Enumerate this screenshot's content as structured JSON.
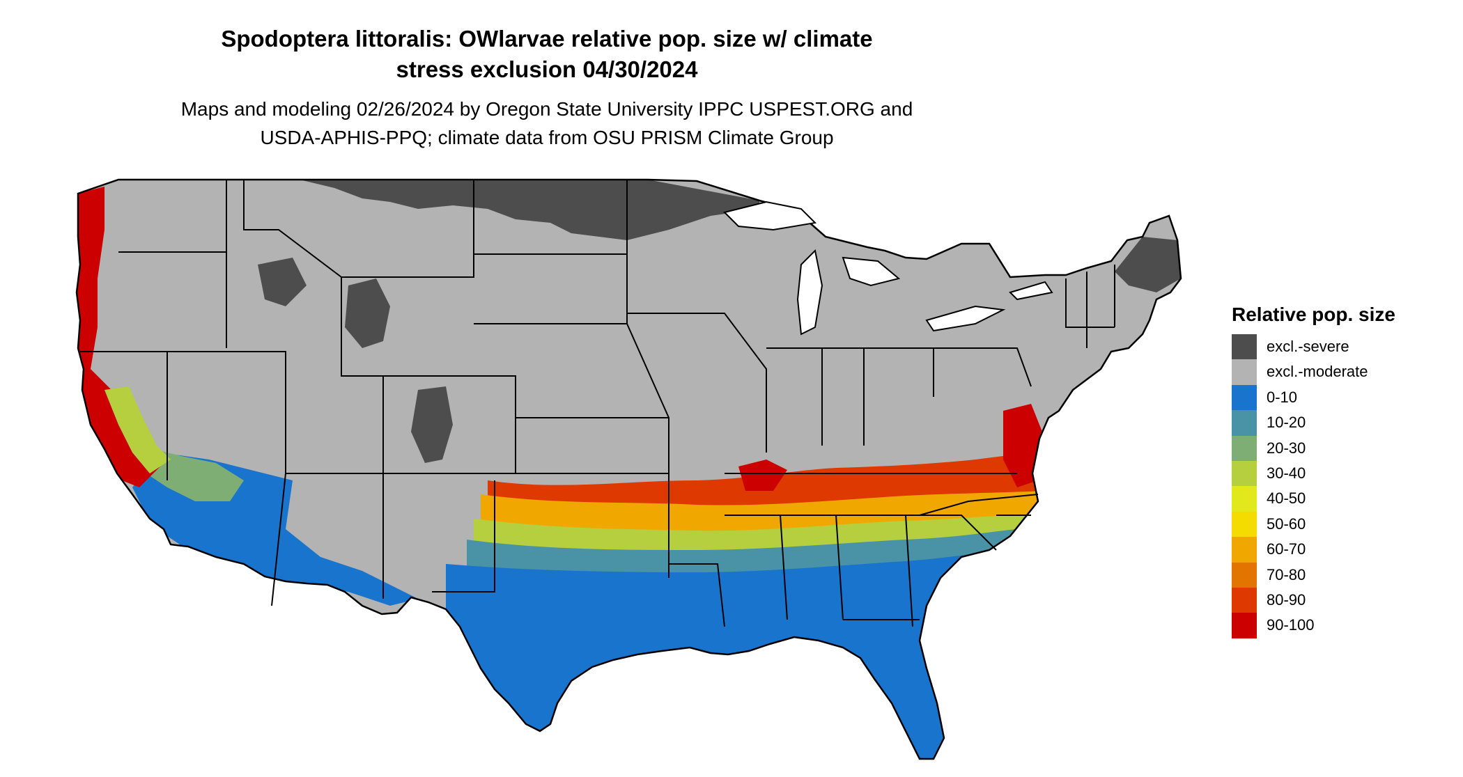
{
  "title": {
    "line1": "Spodoptera littoralis: OWlarvae relative pop. size w/ climate",
    "line2": "stress exclusion 04/30/2024"
  },
  "subtitle": {
    "line1": "Maps and modeling 02/26/2024 by Oregon State University IPPC USPEST.ORG and",
    "line2": "USDA-APHIS-PPQ; climate data from OSU PRISM Climate Group"
  },
  "legend": {
    "title": "Relative pop. size",
    "items": [
      {
        "label": "excl.-severe",
        "color": "#4d4d4d"
      },
      {
        "label": "excl.-moderate",
        "color": "#b3b3b3"
      },
      {
        "label": "0-10",
        "color": "#1874cd"
      },
      {
        "label": "10-20",
        "color": "#4a93a6"
      },
      {
        "label": "20-30",
        "color": "#7fae74"
      },
      {
        "label": "30-40",
        "color": "#b5cf3f"
      },
      {
        "label": "40-50",
        "color": "#e1e81b"
      },
      {
        "label": "50-60",
        "color": "#f5dc00"
      },
      {
        "label": "60-70",
        "color": "#f0a800"
      },
      {
        "label": "70-80",
        "color": "#e27500"
      },
      {
        "label": "80-90",
        "color": "#de3a00"
      },
      {
        "label": "90-100",
        "color": "#cd0000"
      }
    ]
  }
}
